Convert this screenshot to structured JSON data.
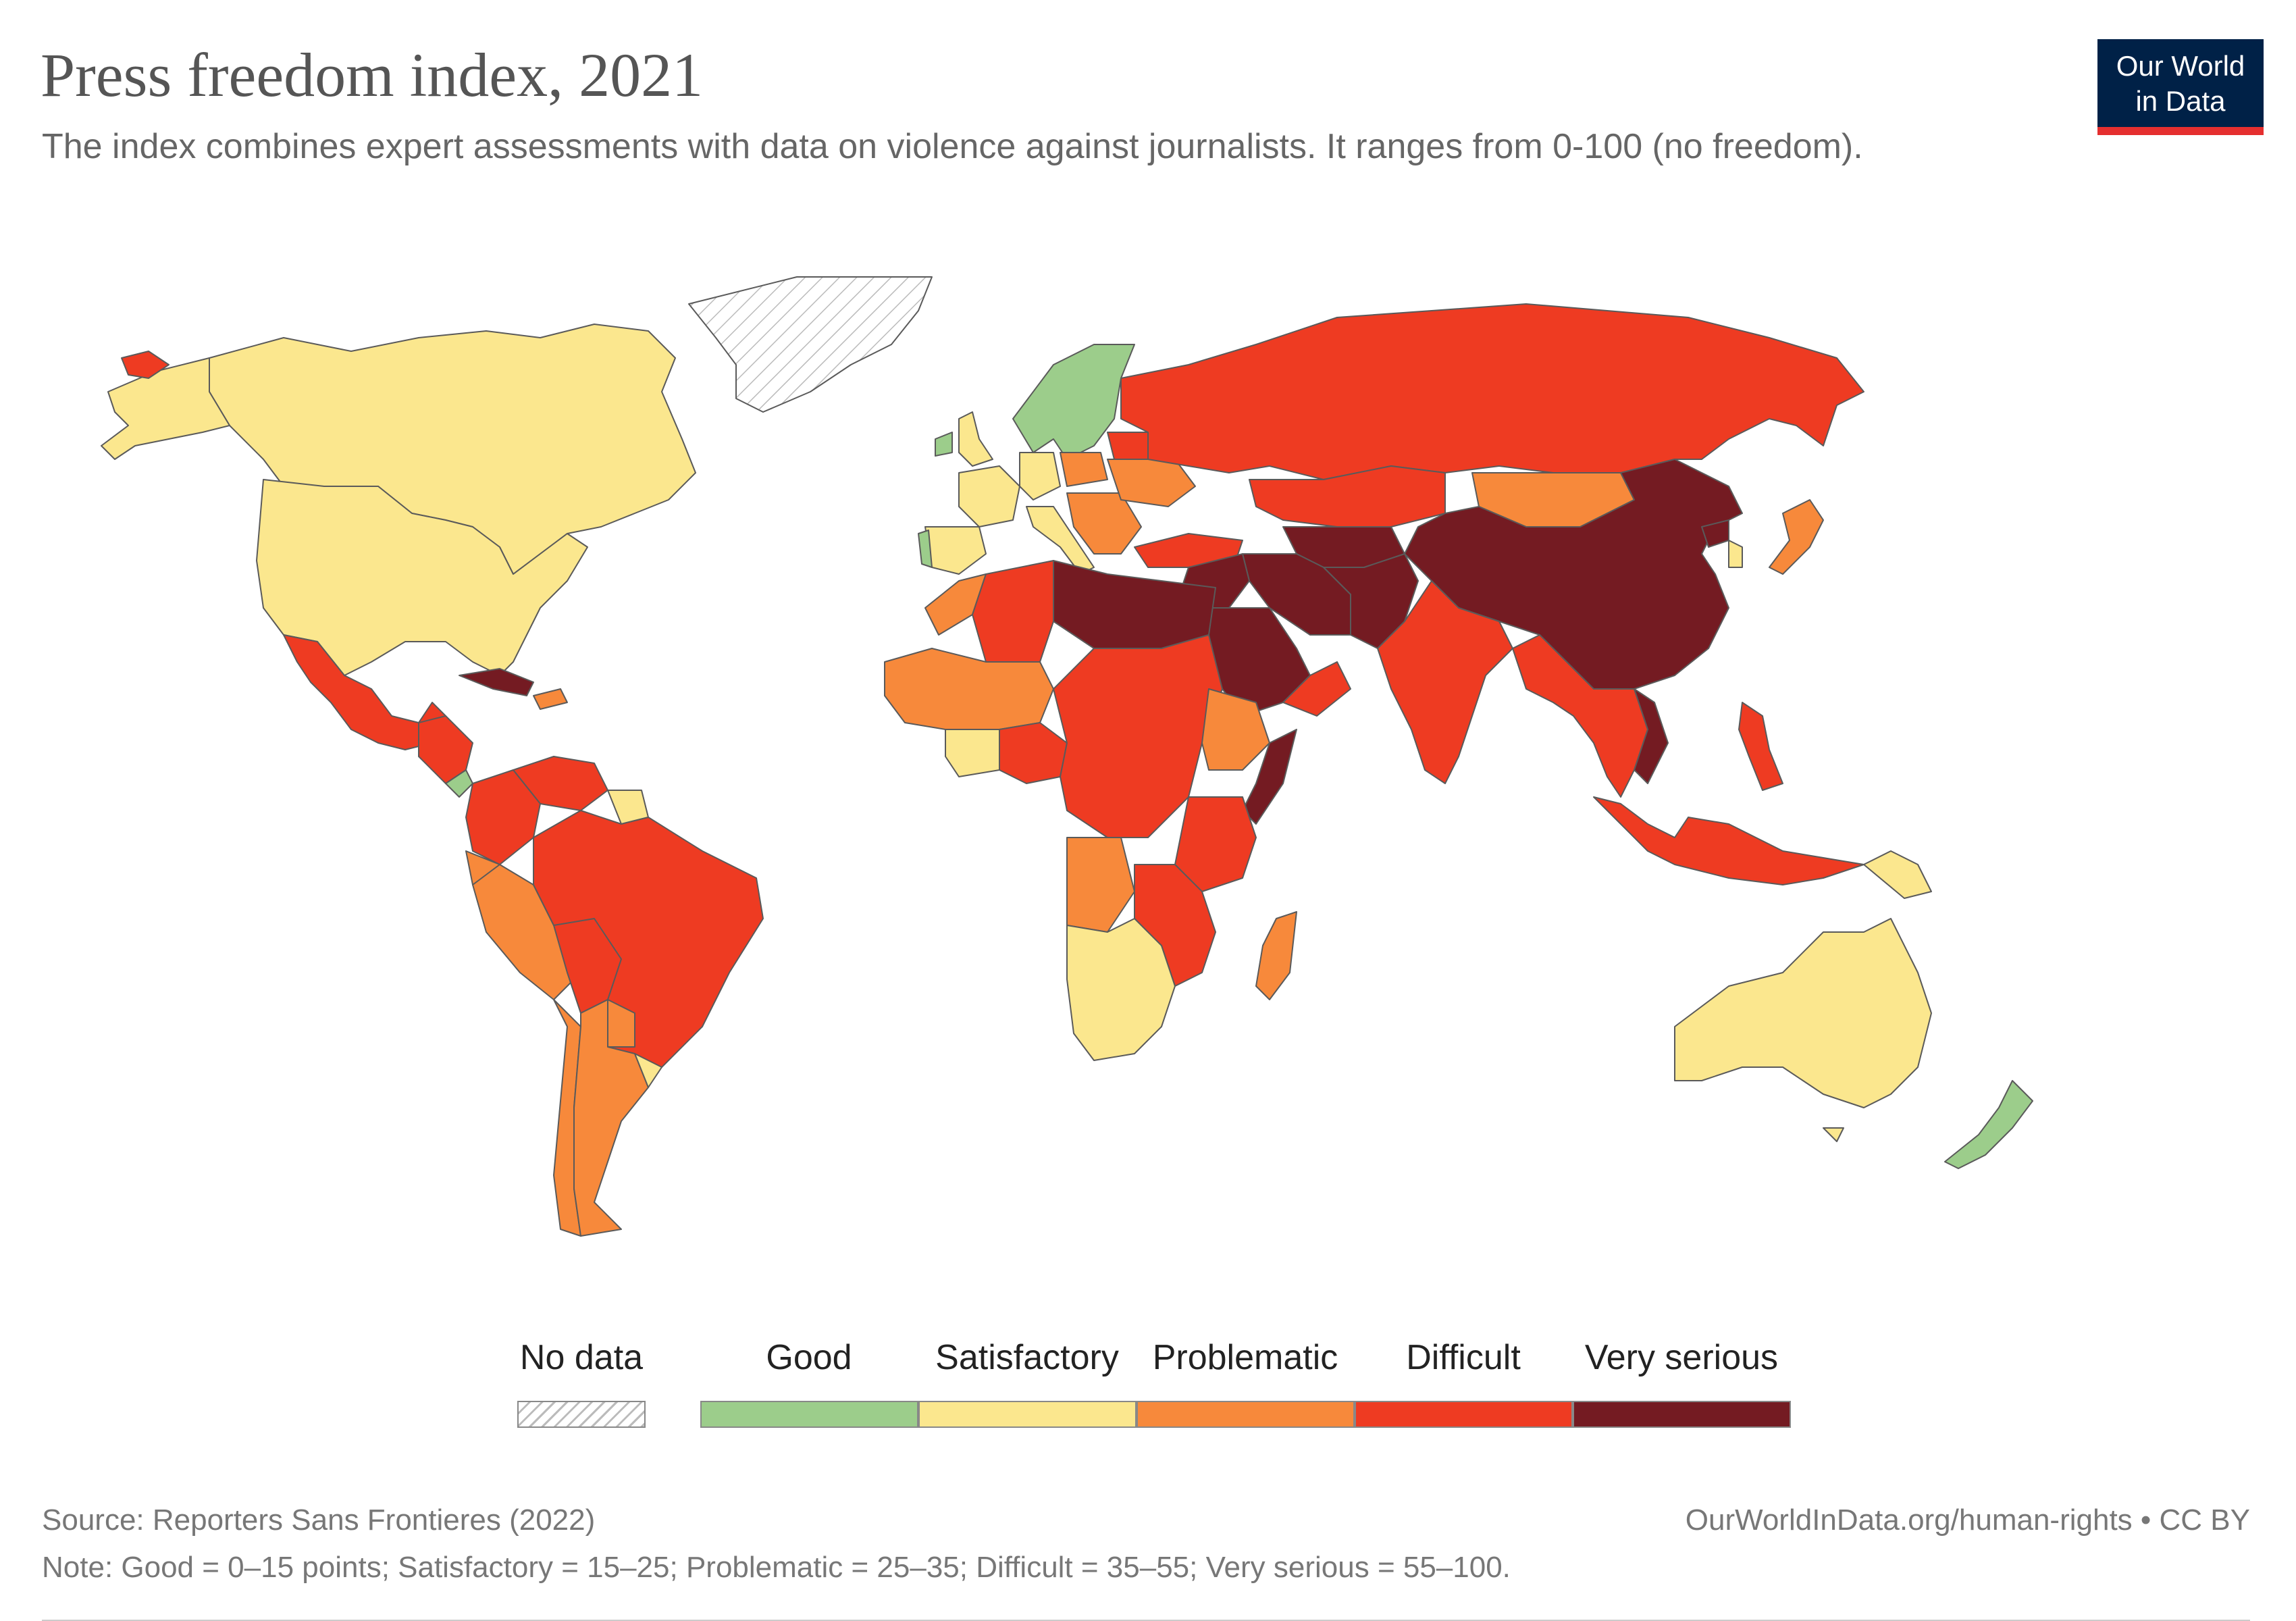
{
  "header": {
    "title": "Press freedom index, 2021",
    "subtitle": "The index combines expert assessments with data on violence against journalists. It ranges from 0-100 (no freedom).",
    "logo_line1": "Our World",
    "logo_line2": "in Data"
  },
  "legend": {
    "no_data_label": "No data",
    "categories": [
      {
        "label": "Good",
        "color": "#9ccd8b"
      },
      {
        "label": "Satisfactory",
        "color": "#fbe78e"
      },
      {
        "label": "Problematic",
        "color": "#f7893b"
      },
      {
        "label": "Difficult",
        "color": "#ee3b22"
      },
      {
        "label": "Very serious",
        "color": "#741b22"
      }
    ]
  },
  "colors": {
    "good": "#9ccd8b",
    "satisfactory": "#fbe78e",
    "problematic": "#f7893b",
    "difficult": "#ee3b22",
    "very_serious": "#741b22",
    "no_data": "#ffffff",
    "border": "#5a5a5a"
  },
  "footer": {
    "source": "Source: Reporters Sans Frontieres (2022)",
    "note": "Note: Good = 0–15 points; Satisfactory = 15–25; Problematic = 25–35; Difficult = 35–55; Very serious = 55–100.",
    "url": "OurWorldInData.org/human-rights • CC BY"
  }
}
